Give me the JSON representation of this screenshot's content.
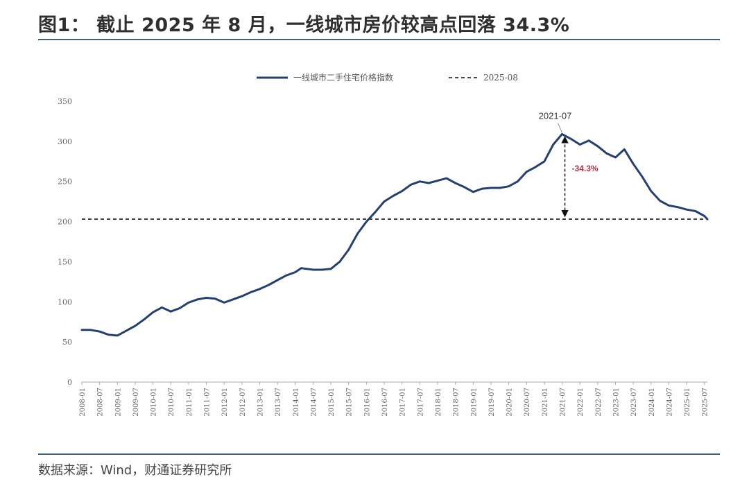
{
  "header": {
    "title": "图1： 截止 2025 年 8 月，一线城市房价较高点回落 34.3%"
  },
  "footer": {
    "source": "数据来源：Wind，财通证券研究所"
  },
  "chart_data": {
    "type": "line",
    "title": "",
    "xlabel": "",
    "ylabel": "",
    "ylim": [
      0,
      350
    ],
    "yticks": [
      0,
      50,
      100,
      150,
      200,
      250,
      300,
      350
    ],
    "grid": false,
    "legend_position": "top-center",
    "xtick_labels": [
      "2008-01",
      "2008-07",
      "2009-01",
      "2009-07",
      "2010-01",
      "2010-07",
      "2011-01",
      "2011-07",
      "2012-01",
      "2012-07",
      "2013-01",
      "2013-07",
      "2014-01",
      "2014-07",
      "2015-01",
      "2015-07",
      "2016-01",
      "2016-07",
      "2017-01",
      "2017-07",
      "2018-01",
      "2018-07",
      "2019-01",
      "2019-07",
      "2020-01",
      "2020-07",
      "2021-01",
      "2021-07",
      "2022-01",
      "2022-07",
      "2023-01",
      "2023-07",
      "2024-01",
      "2024-07",
      "2025-01",
      "2025-07"
    ],
    "series": [
      {
        "name": "一线城市二手住宅价格指数",
        "color": "#24406e",
        "style": "solid",
        "x": [
          "2008-01",
          "2008-04",
          "2008-07",
          "2008-10",
          "2009-01",
          "2009-03",
          "2009-07",
          "2009-10",
          "2010-01",
          "2010-04",
          "2010-07",
          "2010-10",
          "2011-01",
          "2011-04",
          "2011-07",
          "2011-10",
          "2012-01",
          "2012-04",
          "2012-07",
          "2012-10",
          "2013-01",
          "2013-04",
          "2013-07",
          "2013-10",
          "2014-01",
          "2014-03",
          "2014-07",
          "2014-10",
          "2015-01",
          "2015-04",
          "2015-07",
          "2015-10",
          "2016-01",
          "2016-04",
          "2016-07",
          "2016-10",
          "2017-01",
          "2017-04",
          "2017-07",
          "2017-10",
          "2018-01",
          "2018-04",
          "2018-07",
          "2018-10",
          "2019-01",
          "2019-04",
          "2019-07",
          "2019-10",
          "2020-01",
          "2020-04",
          "2020-07",
          "2020-10",
          "2021-01",
          "2021-04",
          "2021-07",
          "2021-10",
          "2022-01",
          "2022-04",
          "2022-07",
          "2022-10",
          "2023-01",
          "2023-04",
          "2023-07",
          "2023-10",
          "2024-01",
          "2024-04",
          "2024-07",
          "2024-10",
          "2025-01",
          "2025-04",
          "2025-07",
          "2025-08"
        ],
        "values": [
          65,
          65,
          63,
          59,
          58,
          62,
          70,
          78,
          87,
          93,
          88,
          92,
          99,
          103,
          105,
          104,
          99,
          103,
          107,
          112,
          116,
          121,
          127,
          133,
          137,
          142,
          140,
          140,
          141,
          150,
          165,
          185,
          200,
          212,
          225,
          232,
          238,
          246,
          250,
          248,
          251,
          254,
          248,
          243,
          237,
          241,
          242,
          242,
          244,
          250,
          262,
          268,
          275,
          296,
          309,
          303,
          296,
          301,
          294,
          285,
          280,
          290,
          272,
          256,
          238,
          226,
          220,
          218,
          215,
          213,
          207,
          203
        ]
      },
      {
        "name": "2025-08",
        "color": "#111111",
        "style": "dashed",
        "value": 203
      }
    ],
    "annotations": [
      {
        "label": "2021-07",
        "x": "2021-07",
        "y": 309
      },
      {
        "label": "-34.3%",
        "x": "2021-07",
        "from": 309,
        "to": 203,
        "color": "#c0303a"
      }
    ]
  }
}
